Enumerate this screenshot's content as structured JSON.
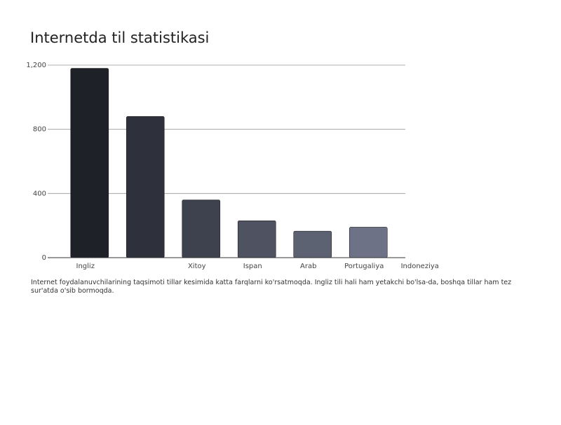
{
  "chart_data": {
    "type": "bar",
    "title": "Internetda til statistikasi",
    "categories": [
      "Ingliz",
      null,
      "Xitoy",
      "Ispan",
      "Arab",
      "Portugaliya",
      "Indoneziya"
    ],
    "values": [
      1180,
      880,
      360,
      230,
      165,
      190,
      null
    ],
    "colors": [
      "#1e2128",
      "#7d8299"
    ],
    "ylim": [
      0,
      1200
    ],
    "yticks": [
      0,
      400,
      800,
      {
        "value": 1200,
        "label": "1,200"
      }
    ],
    "grid": true,
    "description": "Internet foydalanuvchilarining taqsimoti tillar kesimida katta farqlarni ko'rsatmoqda. Ingliz tili hali ham yetakchi bo'lsa-da, boshqa tillar ham tez sur'atda o'sib bormoqda."
  }
}
